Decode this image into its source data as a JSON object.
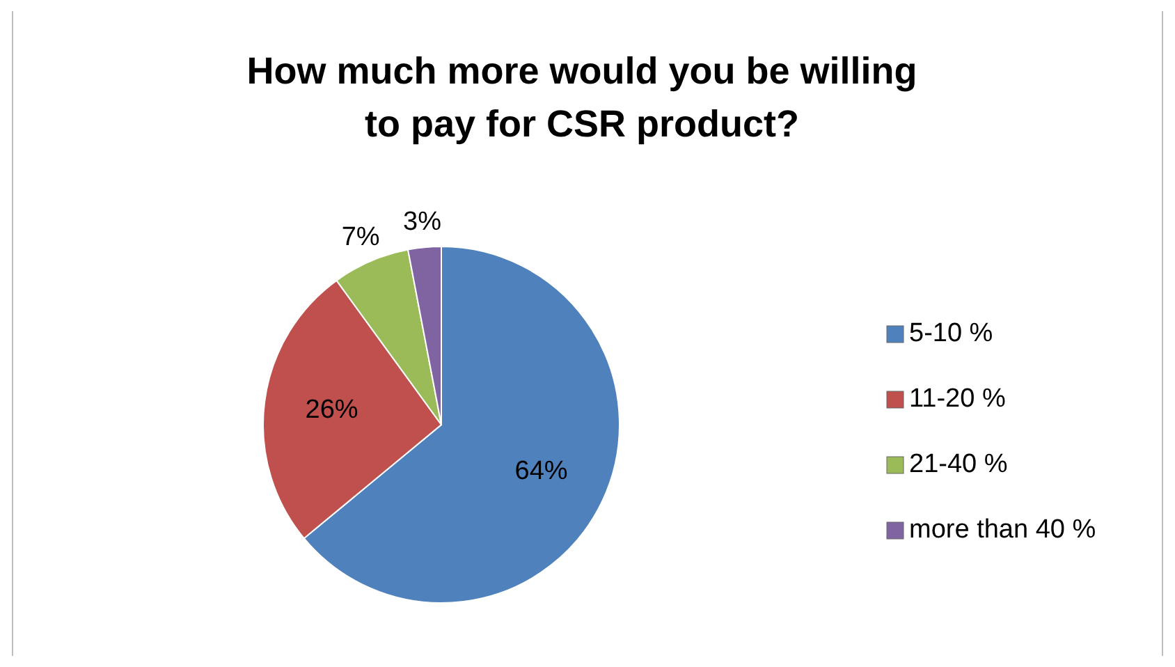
{
  "chart_data": {
    "type": "pie",
    "title": "How much more would you be willing to pay for CSR product?",
    "categories": [
      "5-10 %",
      "11-20 %",
      "21-40 %",
      "more than 40 %"
    ],
    "values": [
      64,
      26,
      7,
      3
    ],
    "value_labels": [
      "64%",
      "26%",
      "7%",
      "3%"
    ],
    "colors": [
      "#4f81bd",
      "#c0504d",
      "#9bbb59",
      "#8064a2"
    ],
    "legend": "right"
  }
}
